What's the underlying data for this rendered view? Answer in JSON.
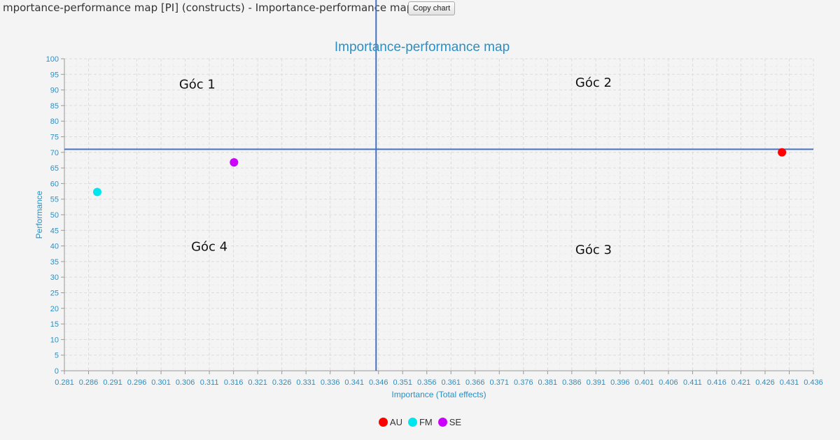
{
  "header": {
    "title": "mportance-performance map [PI] (constructs) - Importance-performance map",
    "copy_button_label": "Copy chart"
  },
  "colors": {
    "axis_text": "#2b8fc3",
    "title": "#2b8fc3",
    "grid": "#dcdcdc",
    "reference_line": "#4472c4",
    "AU": "#ff0000",
    "FM": "#00e5ee",
    "SE": "#cc00ff"
  },
  "chart_data": {
    "type": "scatter",
    "title": "Importance-performance map",
    "xlabel": "Importance (Total effects)",
    "ylabel": "Performance",
    "xlim": [
      0.281,
      0.436
    ],
    "ylim": [
      0,
      100
    ],
    "x_ticks": [
      "0.281",
      "0.286",
      "0.291",
      "0.296",
      "0.301",
      "0.306",
      "0.311",
      "0.316",
      "0.321",
      "0.326",
      "0.331",
      "0.336",
      "0.341",
      "0.346",
      "0.351",
      "0.356",
      "0.361",
      "0.366",
      "0.371",
      "0.376",
      "0.381",
      "0.386",
      "0.391",
      "0.396",
      "0.401",
      "0.406",
      "0.411",
      "0.416",
      "0.421",
      "0.426",
      "0.431",
      "0.436"
    ],
    "y_ticks": [
      "0",
      "5",
      "10",
      "15",
      "20",
      "25",
      "30",
      "35",
      "40",
      "45",
      "50",
      "55",
      "60",
      "65",
      "70",
      "75",
      "80",
      "85",
      "90",
      "95",
      "100"
    ],
    "grid": true,
    "legend_placement": "bottom",
    "series": [
      {
        "name": "AU",
        "x": [
          0.4295
        ],
        "y": [
          70.0
        ],
        "color": "#ff0000"
      },
      {
        "name": "FM",
        "x": [
          0.2878
        ],
        "y": [
          57.3
        ],
        "color": "#00e5ee"
      },
      {
        "name": "SE",
        "x": [
          0.3161
        ],
        "y": [
          66.8
        ],
        "color": "#cc00ff"
      }
    ],
    "reference_lines": {
      "mean_importance": 0.3455,
      "mean_performance": 71.0
    },
    "annotations": [
      {
        "text": "Góc 1",
        "x": 0.3085,
        "y": 90.5
      },
      {
        "text": "Góc 2",
        "x": 0.3905,
        "y": 91.0
      },
      {
        "text": "Góc 3",
        "x": 0.3905,
        "y": 37.5
      },
      {
        "text": "Góc 4",
        "x": 0.311,
        "y": 38.5
      }
    ]
  }
}
